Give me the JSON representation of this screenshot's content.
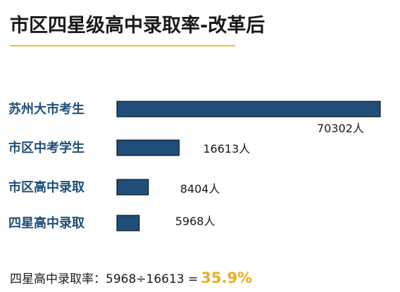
{
  "header": {
    "title": "市区四星级高中录取率-改革后"
  },
  "chart_data": {
    "type": "bar",
    "orientation": "horizontal",
    "categories": [
      "苏州大市考生",
      "市区中考学生",
      "市区高中录取",
      "四星高中录取"
    ],
    "values": [
      70302,
      16613,
      8404,
      5968
    ],
    "value_labels": [
      "70302人",
      "16613人",
      "8404人",
      "5968人"
    ],
    "xlim": [
      0,
      70302
    ],
    "grid": false,
    "colors": {
      "bar": "#1f4e79",
      "label": "#1f4e79"
    }
  },
  "footer": {
    "formula_text": "四星高中录取率：5968÷16613 =",
    "result": "35.9%"
  },
  "colors": {
    "accent": "#f2c12e",
    "result": "#e8b020"
  }
}
